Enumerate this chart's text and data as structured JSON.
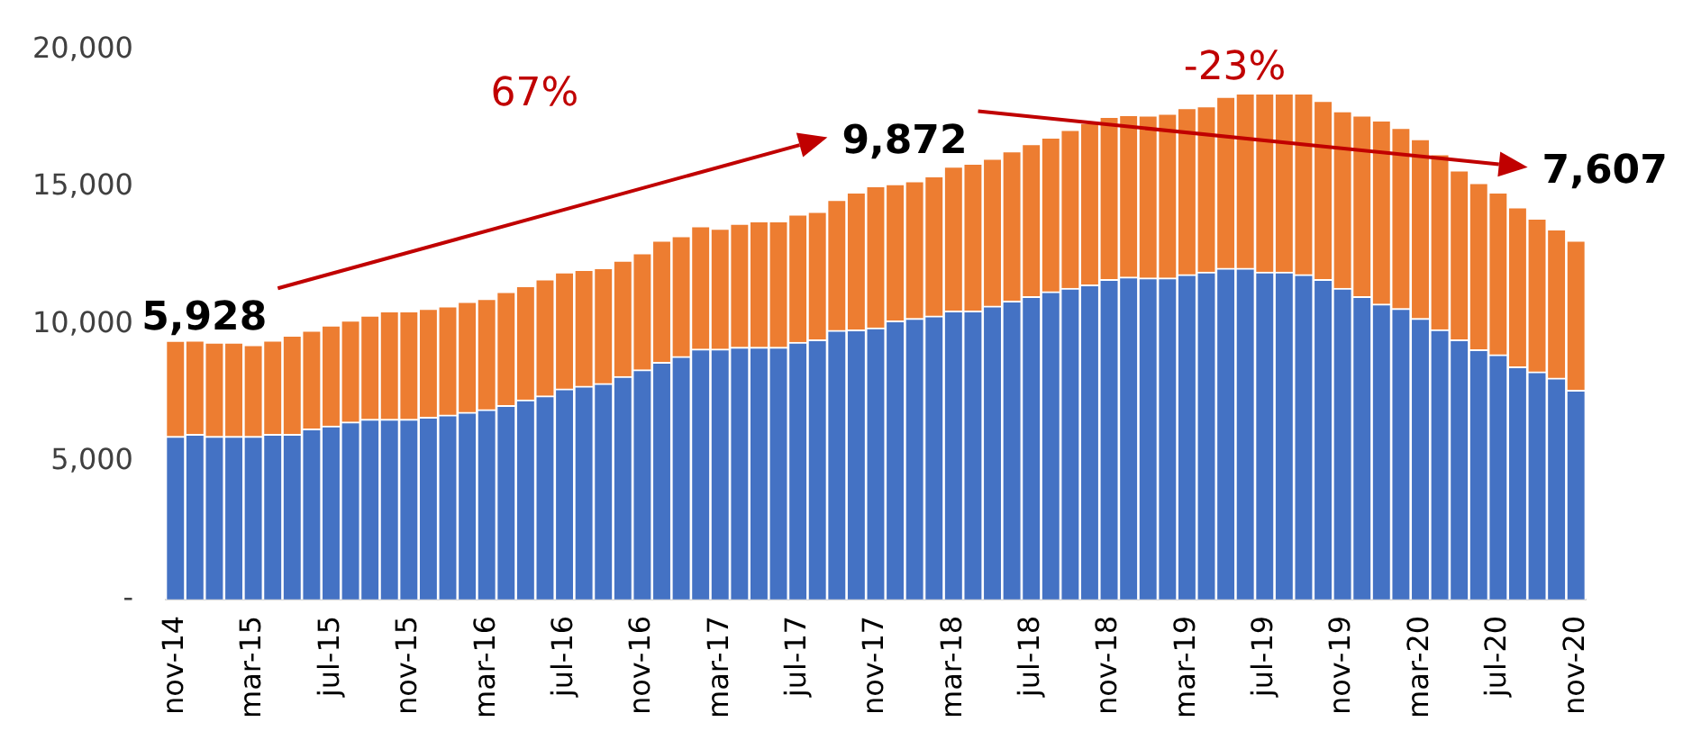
{
  "chart_data": {
    "type": "bar",
    "stacked": true,
    "categories": [
      "nov-14",
      null,
      null,
      null,
      "mar-15",
      null,
      null,
      null,
      "jul-15",
      null,
      null,
      null,
      "nov-15",
      null,
      null,
      null,
      "mar-16",
      null,
      null,
      null,
      "jul-16",
      null,
      null,
      null,
      "nov-16",
      null,
      null,
      null,
      "mar-17",
      null,
      null,
      null,
      "jul-17",
      null,
      null,
      null,
      "nov-17",
      null,
      null,
      null,
      "mar-18",
      null,
      null,
      null,
      "jul-18",
      null,
      null,
      null,
      "nov-18",
      null,
      null,
      null,
      "mar-19",
      null,
      null,
      null,
      "jul-19",
      null,
      null,
      null,
      "nov-19",
      null,
      null,
      null,
      "mar-20",
      null,
      null,
      null,
      "jul-20",
      null,
      null,
      null,
      "nov-20"
    ],
    "series": [
      {
        "color": "#4472c4",
        "values": [
          5928,
          6000,
          5930,
          5930,
          5930,
          6000,
          6000,
          6200,
          6300,
          6450,
          6550,
          6550,
          6550,
          6620,
          6700,
          6800,
          6900,
          7050,
          7250,
          7400,
          7650,
          7750,
          7850,
          8100,
          8350,
          8620,
          8830,
          9100,
          9100,
          9170,
          9170,
          9170,
          9350,
          9440,
          9780,
          9800,
          9872,
          10130,
          10220,
          10310,
          10490,
          10490,
          10670,
          10850,
          11010,
          11190,
          11310,
          11440,
          11630,
          11720,
          11690,
          11690,
          11810,
          11900,
          12040,
          12040,
          11900,
          11900,
          11810,
          11630,
          11310,
          11010,
          10740,
          10580,
          10220,
          9810,
          9440,
          9080,
          8900,
          8460,
          8280,
          8050,
          7607
        ]
      },
      {
        "color": "#ed7d31",
        "values": [
          3490,
          3420,
          3420,
          3420,
          3330,
          3420,
          3600,
          3580,
          3670,
          3700,
          3780,
          3940,
          3940,
          3960,
          3970,
          4030,
          4040,
          4140,
          4150,
          4250,
          4250,
          4240,
          4210,
          4230,
          4250,
          4440,
          4390,
          4480,
          4390,
          4500,
          4590,
          4590,
          4660,
          4670,
          4760,
          5010,
          5170,
          4980,
          5000,
          5090,
          5260,
          5370,
          5370,
          5460,
          5560,
          5620,
          5780,
          5900,
          5930,
          5910,
          5920,
          5990,
          6070,
          6050,
          6250,
          6370,
          6510,
          6510,
          6600,
          6510,
          6460,
          6600,
          6690,
          6580,
          6530,
          6390,
          6170,
          6070,
          5910,
          5810,
          5580,
          5420,
          5450
        ]
      }
    ],
    "ylim": [
      0,
      20000
    ],
    "yticks": [
      {
        "value": 0,
        "label": "-"
      },
      {
        "value": 5000,
        "label": "5,000"
      },
      {
        "value": 10000,
        "label": "10,000"
      },
      {
        "value": 15000,
        "label": "15,000"
      },
      {
        "value": 20000,
        "label": "20,000"
      }
    ],
    "grid": false,
    "legend": false,
    "annotations": [
      {
        "text": "5,928",
        "x": "nov-14",
        "y": 9420
      },
      {
        "text": "9,872",
        "x": "nov-17",
        "y": 15040
      },
      {
        "text": "7,607",
        "x": "nov-20",
        "y": 13060
      },
      "67%",
      "-23%"
    ]
  }
}
